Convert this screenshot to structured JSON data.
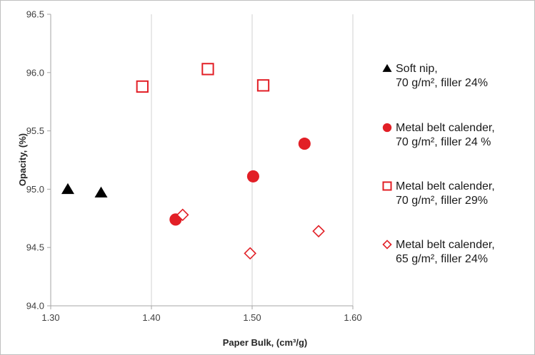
{
  "chart_data": {
    "type": "scatter",
    "xlabel": "Paper Bulk, (cm³/g)",
    "ylabel": "Opacity, (%)",
    "xlim": [
      1.3,
      1.6
    ],
    "ylim": [
      94.0,
      96.5
    ],
    "x_ticks": [
      "1.30",
      "1.40",
      "1.50",
      "1.60"
    ],
    "y_ticks": [
      "94.0",
      "94.5",
      "95.0",
      "95.5",
      "96.0",
      "96.5"
    ],
    "grid": "vertical",
    "legend_position": "right",
    "series": [
      {
        "name_lines": [
          "Soft nip,",
          "70 g/m², filler 24%"
        ],
        "marker": "triangle",
        "color": "#000000",
        "x": [
          1.317,
          1.35
        ],
        "y": [
          95.0,
          94.97
        ]
      },
      {
        "name_lines": [
          "Metal belt calender,",
          "70 g/m², filler 24 %"
        ],
        "marker": "circle",
        "color": "#e21f26",
        "x": [
          1.424,
          1.501,
          1.552
        ],
        "y": [
          94.74,
          95.11,
          95.39
        ]
      },
      {
        "name_lines": [
          "Metal belt calender,",
          "70 g/m², filler 29%"
        ],
        "marker": "square-open",
        "color": "#e21f26",
        "x": [
          1.391,
          1.456,
          1.511
        ],
        "y": [
          95.88,
          96.03,
          95.89
        ]
      },
      {
        "name_lines": [
          "Metal belt calender,",
          "65 g/m², filler 24%"
        ],
        "marker": "diamond-open",
        "color": "#e21f26",
        "x": [
          1.431,
          1.498,
          1.566
        ],
        "y": [
          94.78,
          94.45,
          94.64
        ]
      }
    ]
  }
}
